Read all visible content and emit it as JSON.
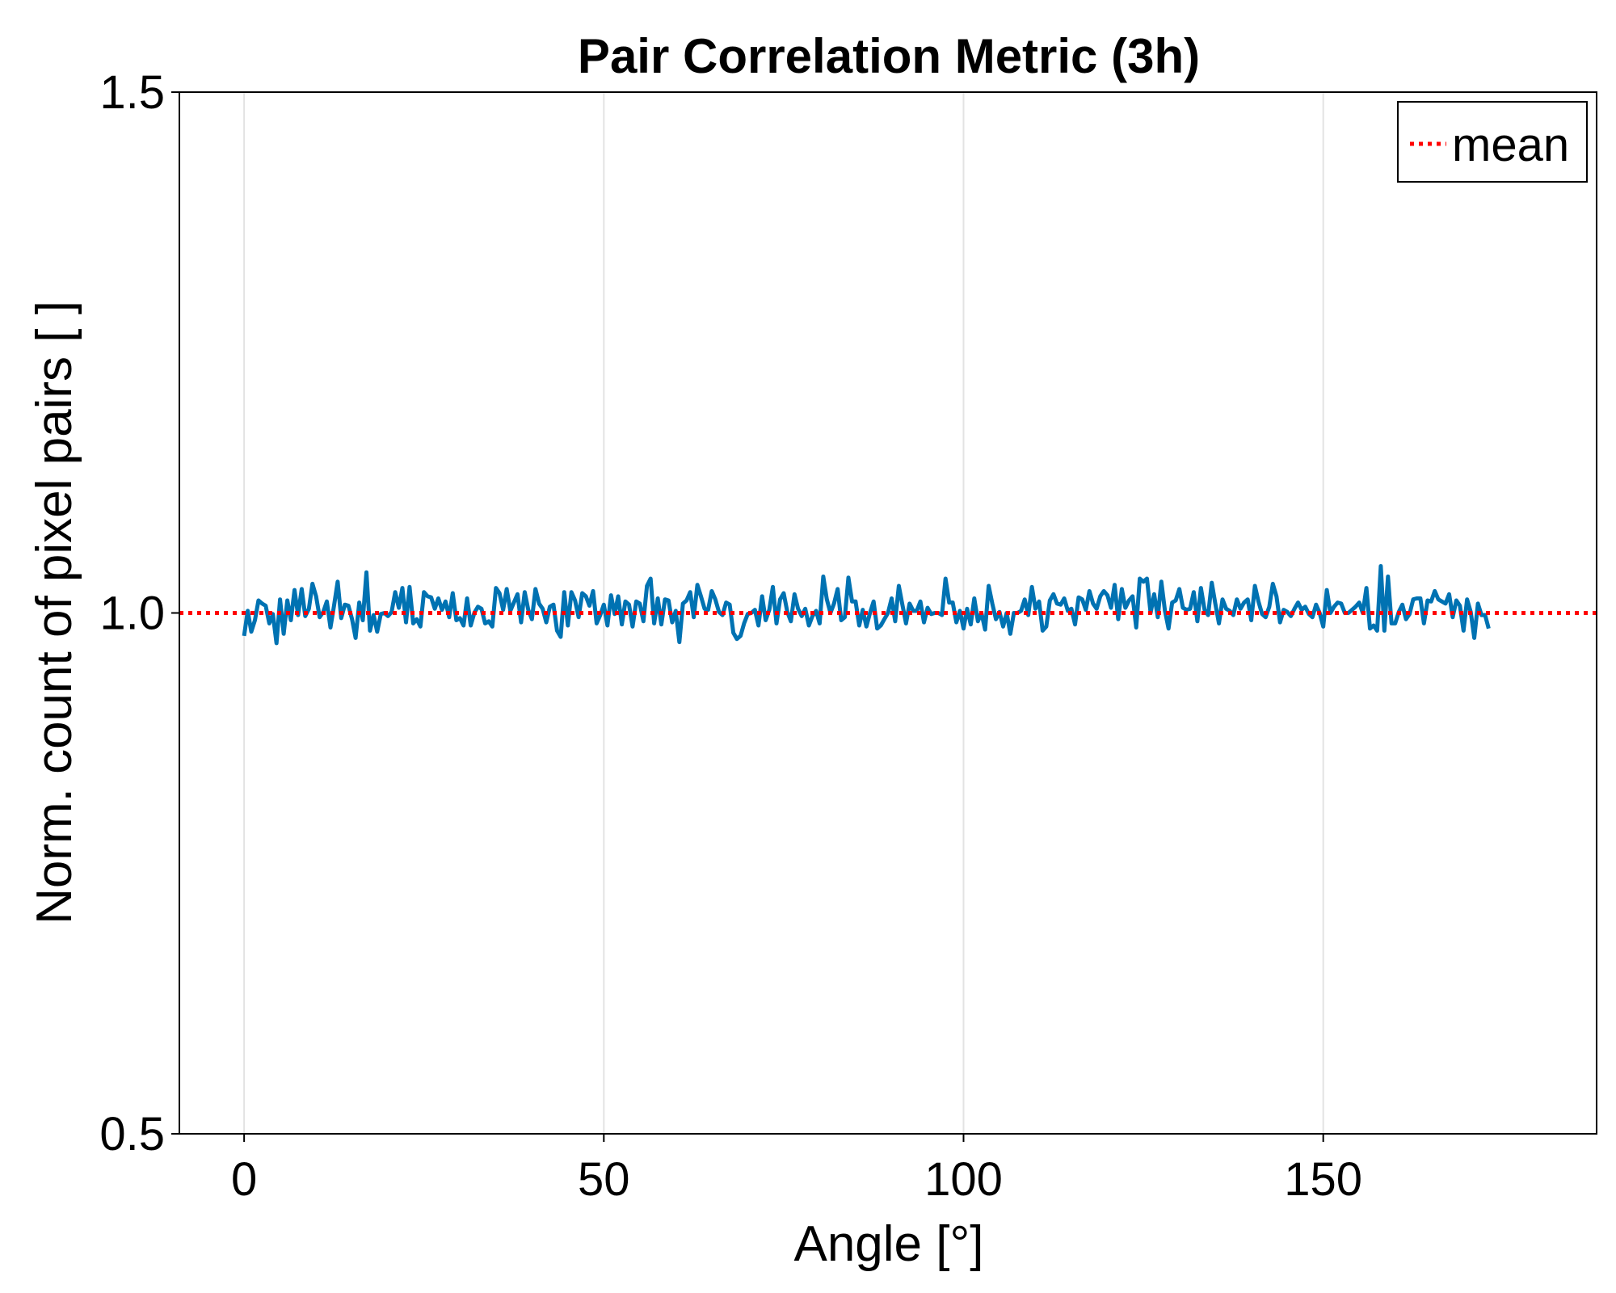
{
  "chart_data": {
    "type": "line",
    "title": "Pair Correlation Metric (3h)",
    "xlabel": "Angle [°]",
    "ylabel": "Norm. count of pixel pairs [ ]",
    "xlim": [
      -9,
      188
    ],
    "ylim": [
      0.5,
      1.5
    ],
    "xticks": [
      0,
      50,
      100,
      150
    ],
    "xtick_labels": [
      "0",
      "50",
      "100",
      "150"
    ],
    "yticks": [
      0.5,
      1.0,
      1.5
    ],
    "ytick_labels": [
      "0.5",
      "1.0",
      "1.5"
    ],
    "grid": "vertical",
    "legend_position": "top-right",
    "series": [
      {
        "color": "#0072b2",
        "style": "solid",
        "x_start": 0,
        "x_step": 0.5,
        "y": [
          0.978,
          1.002,
          0.982,
          0.993,
          1.012,
          1.009,
          1.007,
          0.99,
          0.999,
          0.971,
          1.013,
          0.98,
          1.012,
          0.993,
          1.022,
          0.998,
          1.023,
          0.997,
          1.004,
          1.028,
          1.016,
          0.996,
          1.001,
          1.011,
          0.986,
          1.007,
          1.03,
          0.995,
          1.008,
          1.007,
          0.994,
          0.976,
          1.01,
          0.993,
          1.039,
          0.983,
          0.998,
          0.982,
          0.999,
          1.0,
          0.997,
          1.001,
          1.02,
          1.005,
          1.024,
          0.991,
          1.025,
          0.99,
          0.994,
          0.987,
          1.02,
          1.016,
          1.015,
          1.004,
          1.014,
          1.003,
          1.011,
          0.996,
          1.019,
          0.993,
          0.995,
          0.988,
          1.014,
          0.988,
          1.0,
          1.006,
          1.004,
          0.99,
          0.992,
          0.987,
          1.024,
          1.019,
          1.003,
          1.023,
          1.002,
          1.01,
          1.018,
          0.991,
          1.02,
          1.003,
          0.994,
          1.023,
          1.009,
          1.004,
          0.991,
          1.006,
          1.008,
          0.983,
          0.977,
          1.02,
          0.988,
          1.02,
          1.012,
          0.996,
          1.019,
          1.016,
          1.007,
          1.021,
          0.99,
          0.998,
          1.008,
          0.988,
          1.017,
          0.999,
          1.016,
          0.989,
          1.011,
          1.008,
          0.987,
          1.011,
          1.009,
          0.992,
          1.026,
          1.033,
          0.99,
          1.014,
          0.989,
          1.013,
          1.012,
          0.991,
          1.002,
          0.972,
          1.009,
          1.012,
          1.02,
          0.996,
          1.027,
          1.016,
          1.004,
          1.003,
          1.021,
          1.013,
          1.001,
          0.998,
          1.01,
          1.008,
          0.981,
          0.975,
          0.978,
          0.99,
          0.999,
          1.0,
          1.003,
          0.988,
          1.016,
          0.993,
          1.003,
          1.025,
          0.99,
          1.013,
          1.019,
          1.001,
          0.992,
          1.018,
          1.004,
          0.997,
          1.004,
          0.988,
          0.997,
          1.002,
          0.99,
          1.035,
          1.013,
          1.0,
          1.009,
          1.023,
          0.993,
          0.996,
          1.034,
          1.011,
          1.011,
          0.988,
          1.003,
          0.987,
          1.0,
          1.011,
          0.985,
          0.988,
          0.994,
          1.0,
          1.014,
          0.992,
          1.026,
          1.008,
          0.99,
          1.009,
          1.002,
          1.002,
          1.011,
          0.991,
          1.005,
          0.999,
          1.0,
          1.0,
          0.998,
          1.033,
          1.01,
          1.01,
          0.991,
          1.002,
          0.985,
          1.004,
          0.989,
          1.014,
          0.992,
          1.0,
          0.984,
          1.026,
          1.009,
          0.994,
          1.001,
          0.987,
          1.0,
          0.98,
          1.0,
          1.0,
          1.002,
          1.013,
          0.998,
          1.025,
          1.004,
          1.011,
          0.983,
          0.987,
          1.012,
          1.018,
          1.009,
          1.008,
          1.014,
          1.002,
          1.004,
          0.989,
          1.015,
          1.013,
          1.003,
          1.021,
          1.009,
          1.004,
          1.016,
          1.021,
          1.017,
          1.005,
          1.027,
          0.994,
          1.023,
          1.005,
          1.012,
          1.016,
          0.986,
          1.033,
          1.03,
          1.033,
          1.0,
          1.018,
          0.996,
          1.03,
          1.002,
          0.985,
          1.01,
          1.012,
          1.023,
          1.005,
          1.003,
          1.004,
          1.02,
          0.992,
          1.024,
          1.003,
          0.998,
          1.029,
          1.009,
          0.99,
          1.013,
          1.004,
          1.002,
          0.998,
          1.013,
          1.004,
          1.01,
          1.013,
          0.993,
          1.026,
          1.011,
          0.999,
          0.996,
          1.006,
          1.028,
          1.016,
          0.991,
          1.003,
          1.001,
          0.997,
          1.004,
          1.01,
          1.003,
          1.006,
          0.999,
          0.996,
          1.008,
          1.0,
          0.987,
          1.022,
          1.0,
          1.006,
          1.01,
          1.009,
          1.0,
          1.0,
          1.003,
          1.006,
          1.01,
          1.0,
          1.024,
          0.985,
          0.988,
          0.983,
          1.045,
          0.983,
          1.035,
          0.99,
          0.99,
          1.001,
          1.008,
          0.994,
          0.999,
          1.013,
          1.014,
          1.014,
          0.99,
          1.012,
          1.011,
          1.021,
          1.013,
          1.011,
          1.009,
          1.018,
          0.996,
          1.012,
          1.007,
          0.983,
          1.013,
          1.001,
          0.976,
          1.009,
          0.998,
          0.998,
          0.985
        ]
      },
      {
        "name": "mean",
        "color": "#ff0000",
        "style": "dotted",
        "constant_y": 1.0
      }
    ]
  }
}
